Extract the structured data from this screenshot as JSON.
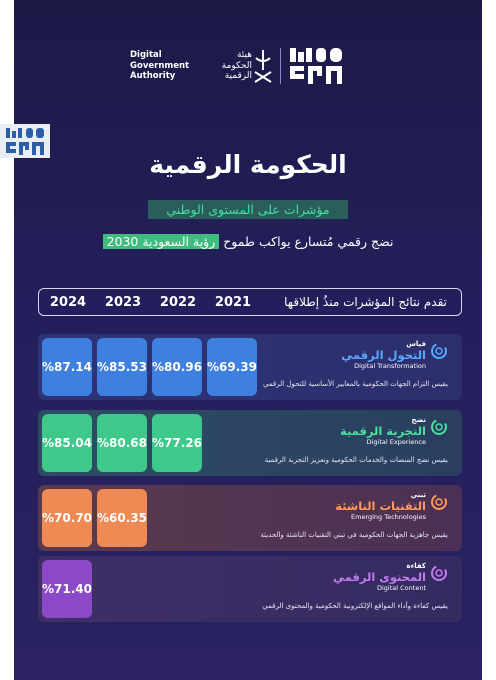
{
  "header": {
    "dga_en": [
      "Digital",
      "Government",
      "Authority"
    ],
    "dga_ar": [
      "هيئة",
      "الحكومة",
      "الرقمية"
    ],
    "spa_logo": "SPA"
  },
  "title": "الحكومة الرقمية",
  "subtitle": "مؤشرات على المستوى الوطني",
  "tagline": {
    "prefix": "نضج رقمي مُتسارع يواكب طموح",
    "highlight": "رؤية السعودية 2030"
  },
  "chart_data": {
    "type": "table",
    "caption": "تقدم نتائج المؤشرات منذُ إطلاقها",
    "years": [
      "2024",
      "2023",
      "2022",
      "2021"
    ],
    "rows": [
      {
        "kicker": "قياس",
        "name_ar": "التحول الرقمي",
        "name_en": "Digital Transformation",
        "desc": "يقيس التزام الجهات الحكومية بالمعايير الأساسية للتحول الرقمي",
        "color": "#3e7fe0",
        "values": [
          "%87.14",
          "%85.53",
          "%80.96",
          "%69.39"
        ]
      },
      {
        "kicker": "نضج",
        "name_ar": "التجربة الرقمية",
        "name_en": "Digital Experience",
        "desc": "يقيس نضج المنصات والخدمات الحكومية وتعزيز التجربة الرقمية",
        "color": "#3ec98a",
        "values": [
          "%85.04",
          "%80.68",
          "%77.26"
        ]
      },
      {
        "kicker": "تبني",
        "name_ar": "التقنيات الناشئة",
        "name_en": "Emerging Technologies",
        "desc": "يقيس جاهزية الجهات الحكومية في تبني التقنيات الناشئة والحديثة",
        "color": "#ef8a55",
        "values": [
          "%70.70",
          "%60.35"
        ]
      },
      {
        "kicker": "كفاءة",
        "name_ar": "المحتوى الرقمي",
        "name_en": "Digital Content",
        "desc": "يقيس كفاءة وأداء المواقع الإلكترونية الحكومية والمحتوى الرقمي",
        "color": "#8b48c8",
        "values": [
          "%71.40"
        ]
      }
    ]
  }
}
